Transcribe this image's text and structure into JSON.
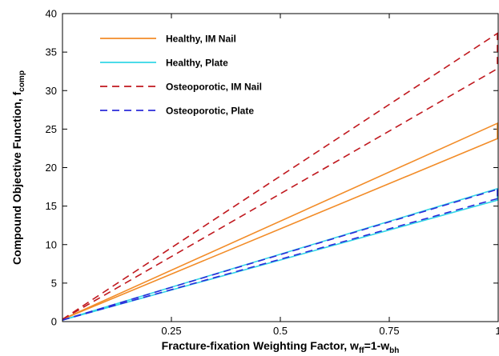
{
  "chart_data": {
    "type": "line",
    "xlabel": "Fracture-fixation Weighting Factor, w",
    "xlabel_sub1": "ff",
    "xlabel_mid": "=1-w",
    "xlabel_sub2": "bh",
    "ylabel": "Compound Objective Function, f",
    "ylabel_sub": "comp",
    "xlim": [
      0,
      1
    ],
    "ylim": [
      0,
      40
    ],
    "xticks": [
      0.25,
      0.5,
      0.75,
      1
    ],
    "xtick_labels": [
      "0.25",
      "0.5",
      "0.75",
      "1"
    ],
    "yticks": [
      0,
      5,
      10,
      15,
      20,
      25,
      30,
      35,
      40
    ],
    "ytick_labels": [
      "0",
      "5",
      "10",
      "15",
      "20",
      "25",
      "30",
      "35",
      "40"
    ],
    "legend_placement": "top-left",
    "series": [
      {
        "name": "Healthy, IM Nail",
        "color": "#f28c28",
        "dash": "solid",
        "lines": [
          [
            [
              0,
              0.3
            ],
            [
              1,
              25.8
            ]
          ],
          [
            [
              0,
              0.3
            ],
            [
              1,
              23.8
            ]
          ]
        ]
      },
      {
        "name": "Healthy, Plate",
        "color": "#33d6e6",
        "dash": "solid",
        "lines": [
          [
            [
              0,
              0.2
            ],
            [
              1,
              17.3
            ]
          ],
          [
            [
              0,
              0.2
            ],
            [
              1,
              15.8
            ]
          ]
        ]
      },
      {
        "name": "Osteoporotic, IM Nail",
        "color": "#c0181e",
        "dash": "dashed",
        "lines": [
          [
            [
              0,
              0.3
            ],
            [
              1,
              37.5
            ]
          ],
          [
            [
              0,
              0.3
            ],
            [
              1,
              32.9
            ]
          ]
        ]
      },
      {
        "name": "Osteoporotic, Plate",
        "color": "#2b2bd9",
        "dash": "dashed",
        "lines": [
          [
            [
              0,
              0.2
            ],
            [
              1,
              17.2
            ]
          ],
          [
            [
              0,
              0.2
            ],
            [
              1,
              16.0
            ]
          ]
        ]
      }
    ]
  }
}
